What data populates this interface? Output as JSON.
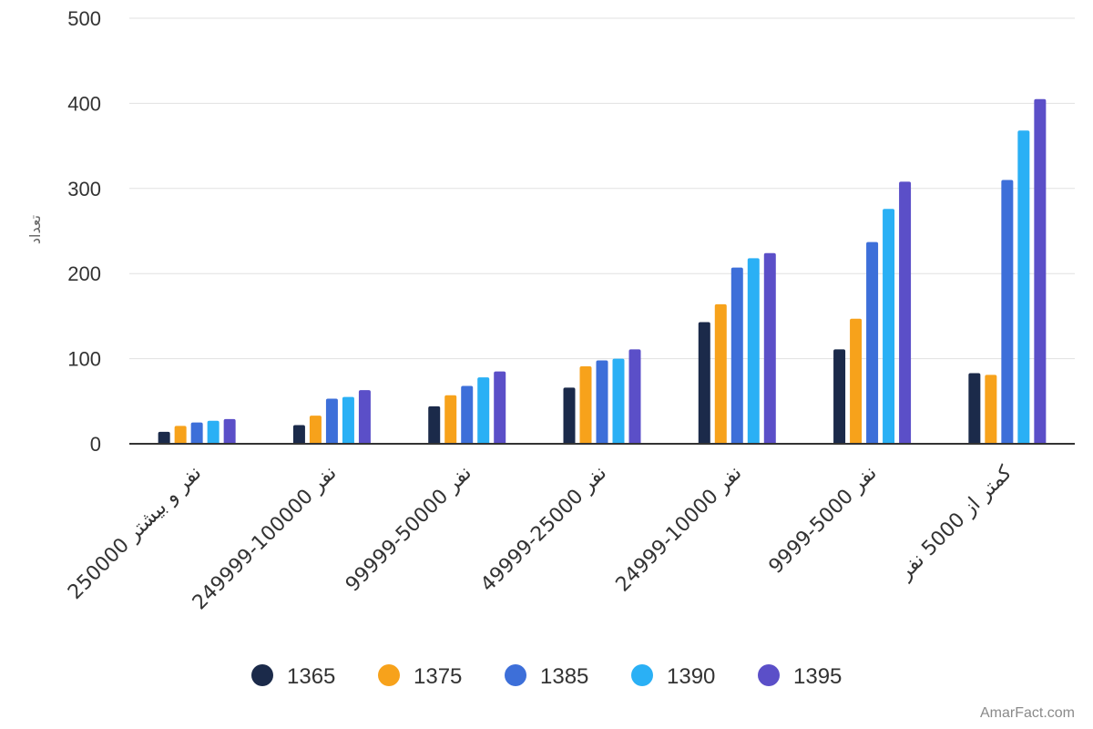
{
  "chart_data": {
    "type": "bar",
    "title": "",
    "xlabel": "",
    "ylabel": "تعداد",
    "ylim": [
      0,
      500
    ],
    "yticks": [
      0,
      100,
      200,
      300,
      400,
      500
    ],
    "grid": true,
    "legend_position": "bottom",
    "categories": [
      "250000 نفر و بیشتر",
      "249999-100000 نفر",
      "99999-50000 نفر",
      "49999-25000 نفر",
      "24999-10000 نفر",
      "9999-5000 نفر",
      "کمتر از 5000 نفر"
    ],
    "series": [
      {
        "name": "1365",
        "color": "#1b2a4a",
        "values": [
          14,
          22,
          44,
          66,
          143,
          111,
          83
        ]
      },
      {
        "name": "1375",
        "color": "#f7a21b",
        "values": [
          21,
          33,
          57,
          91,
          164,
          147,
          81
        ]
      },
      {
        "name": "1385",
        "color": "#3d6fd9",
        "values": [
          25,
          53,
          68,
          98,
          207,
          237,
          310
        ]
      },
      {
        "name": "1390",
        "color": "#2ab0f5",
        "values": [
          27,
          55,
          78,
          100,
          218,
          276,
          368
        ]
      },
      {
        "name": "1395",
        "color": "#5b4fc8",
        "values": [
          29,
          63,
          85,
          111,
          224,
          308,
          405
        ]
      }
    ]
  },
  "watermark": "AmarFact.com"
}
